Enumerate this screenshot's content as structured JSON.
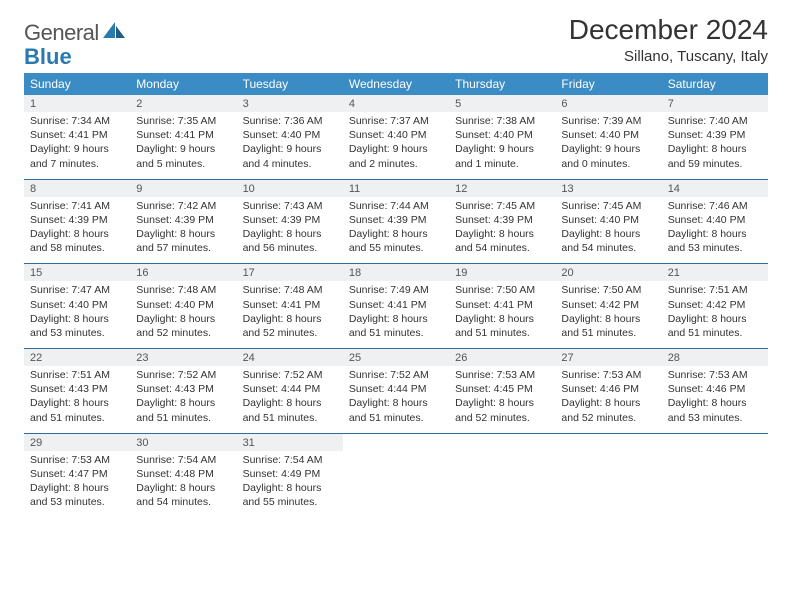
{
  "brand": {
    "part1": "General",
    "part2": "Blue"
  },
  "title": "December 2024",
  "location": "Sillano, Tuscany, Italy",
  "colors": {
    "header_bg": "#3b8bc4",
    "header_text": "#ffffff",
    "daynum_bg": "#eef0f1",
    "rule": "#2f6f9e",
    "body_text": "#333333",
    "logo_blue": "#2a7ab0"
  },
  "typography": {
    "title_fontsize": 28,
    "location_fontsize": 15,
    "dayhead_fontsize": 12,
    "daynum_fontsize": 11,
    "cell_fontsize": 10.5
  },
  "day_headers": [
    "Sunday",
    "Monday",
    "Tuesday",
    "Wednesday",
    "Thursday",
    "Friday",
    "Saturday"
  ],
  "weeks": [
    [
      {
        "num": "1",
        "sunrise": "7:34 AM",
        "sunset": "4:41 PM",
        "daylight": "9 hours and 7 minutes."
      },
      {
        "num": "2",
        "sunrise": "7:35 AM",
        "sunset": "4:41 PM",
        "daylight": "9 hours and 5 minutes."
      },
      {
        "num": "3",
        "sunrise": "7:36 AM",
        "sunset": "4:40 PM",
        "daylight": "9 hours and 4 minutes."
      },
      {
        "num": "4",
        "sunrise": "7:37 AM",
        "sunset": "4:40 PM",
        "daylight": "9 hours and 2 minutes."
      },
      {
        "num": "5",
        "sunrise": "7:38 AM",
        "sunset": "4:40 PM",
        "daylight": "9 hours and 1 minute."
      },
      {
        "num": "6",
        "sunrise": "7:39 AM",
        "sunset": "4:40 PM",
        "daylight": "9 hours and 0 minutes."
      },
      {
        "num": "7",
        "sunrise": "7:40 AM",
        "sunset": "4:39 PM",
        "daylight": "8 hours and 59 minutes."
      }
    ],
    [
      {
        "num": "8",
        "sunrise": "7:41 AM",
        "sunset": "4:39 PM",
        "daylight": "8 hours and 58 minutes."
      },
      {
        "num": "9",
        "sunrise": "7:42 AM",
        "sunset": "4:39 PM",
        "daylight": "8 hours and 57 minutes."
      },
      {
        "num": "10",
        "sunrise": "7:43 AM",
        "sunset": "4:39 PM",
        "daylight": "8 hours and 56 minutes."
      },
      {
        "num": "11",
        "sunrise": "7:44 AM",
        "sunset": "4:39 PM",
        "daylight": "8 hours and 55 minutes."
      },
      {
        "num": "12",
        "sunrise": "7:45 AM",
        "sunset": "4:39 PM",
        "daylight": "8 hours and 54 minutes."
      },
      {
        "num": "13",
        "sunrise": "7:45 AM",
        "sunset": "4:40 PM",
        "daylight": "8 hours and 54 minutes."
      },
      {
        "num": "14",
        "sunrise": "7:46 AM",
        "sunset": "4:40 PM",
        "daylight": "8 hours and 53 minutes."
      }
    ],
    [
      {
        "num": "15",
        "sunrise": "7:47 AM",
        "sunset": "4:40 PM",
        "daylight": "8 hours and 53 minutes."
      },
      {
        "num": "16",
        "sunrise": "7:48 AM",
        "sunset": "4:40 PM",
        "daylight": "8 hours and 52 minutes."
      },
      {
        "num": "17",
        "sunrise": "7:48 AM",
        "sunset": "4:41 PM",
        "daylight": "8 hours and 52 minutes."
      },
      {
        "num": "18",
        "sunrise": "7:49 AM",
        "sunset": "4:41 PM",
        "daylight": "8 hours and 51 minutes."
      },
      {
        "num": "19",
        "sunrise": "7:50 AM",
        "sunset": "4:41 PM",
        "daylight": "8 hours and 51 minutes."
      },
      {
        "num": "20",
        "sunrise": "7:50 AM",
        "sunset": "4:42 PM",
        "daylight": "8 hours and 51 minutes."
      },
      {
        "num": "21",
        "sunrise": "7:51 AM",
        "sunset": "4:42 PM",
        "daylight": "8 hours and 51 minutes."
      }
    ],
    [
      {
        "num": "22",
        "sunrise": "7:51 AM",
        "sunset": "4:43 PM",
        "daylight": "8 hours and 51 minutes."
      },
      {
        "num": "23",
        "sunrise": "7:52 AM",
        "sunset": "4:43 PM",
        "daylight": "8 hours and 51 minutes."
      },
      {
        "num": "24",
        "sunrise": "7:52 AM",
        "sunset": "4:44 PM",
        "daylight": "8 hours and 51 minutes."
      },
      {
        "num": "25",
        "sunrise": "7:52 AM",
        "sunset": "4:44 PM",
        "daylight": "8 hours and 51 minutes."
      },
      {
        "num": "26",
        "sunrise": "7:53 AM",
        "sunset": "4:45 PM",
        "daylight": "8 hours and 52 minutes."
      },
      {
        "num": "27",
        "sunrise": "7:53 AM",
        "sunset": "4:46 PM",
        "daylight": "8 hours and 52 minutes."
      },
      {
        "num": "28",
        "sunrise": "7:53 AM",
        "sunset": "4:46 PM",
        "daylight": "8 hours and 53 minutes."
      }
    ],
    [
      {
        "num": "29",
        "sunrise": "7:53 AM",
        "sunset": "4:47 PM",
        "daylight": "8 hours and 53 minutes."
      },
      {
        "num": "30",
        "sunrise": "7:54 AM",
        "sunset": "4:48 PM",
        "daylight": "8 hours and 54 minutes."
      },
      {
        "num": "31",
        "sunrise": "7:54 AM",
        "sunset": "4:49 PM",
        "daylight": "8 hours and 55 minutes."
      },
      null,
      null,
      null,
      null
    ]
  ],
  "labels": {
    "sunrise_prefix": "Sunrise: ",
    "sunset_prefix": "Sunset: ",
    "daylight_prefix": "Daylight: "
  }
}
